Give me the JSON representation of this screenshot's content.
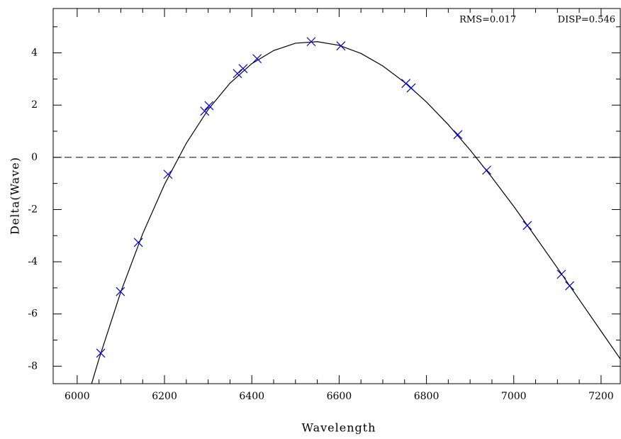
{
  "chart_data": {
    "type": "scatter",
    "xlabel": "Wavelength",
    "ylabel": "Delta(Wave)",
    "annotations": [
      "RMS=0.017",
      "DISP=0.546"
    ],
    "xlim": [
      5945,
      7244
    ],
    "ylim": [
      -8.67,
      5.7
    ],
    "xticks": [
      6000,
      6200,
      6400,
      6600,
      6800,
      7000,
      7200
    ],
    "xminorticks": [
      6050,
      6100,
      6150,
      6250,
      6300,
      6350,
      6450,
      6500,
      6550,
      6650,
      6700,
      6750,
      6850,
      6900,
      6950,
      7050,
      7100,
      7150
    ],
    "yticks": [
      -8,
      -6,
      -4,
      -2,
      0,
      2,
      4
    ],
    "yminorticks": [
      -7,
      -5,
      -3,
      -1,
      1,
      3,
      5
    ],
    "hline": 0,
    "color": "#0000cc",
    "x": [
      6054,
      6099,
      6140,
      6208,
      6292,
      6302,
      6367,
      6380,
      6412,
      6536,
      6604,
      6753,
      6765,
      6872,
      6938,
      7031,
      7109,
      7128
    ],
    "values": [
      -7.5,
      -5.14,
      -3.26,
      -0.65,
      1.77,
      1.98,
      3.21,
      3.4,
      3.78,
      4.43,
      4.27,
      2.83,
      2.66,
      0.87,
      -0.49,
      -2.61,
      -4.48,
      -4.92
    ],
    "fit": {
      "type": "line",
      "color": "#000000",
      "x": [
        6030,
        6050,
        6100,
        6150,
        6200,
        6250,
        6300,
        6350,
        6400,
        6450,
        6500,
        6550,
        6600,
        6650,
        6700,
        6750,
        6800,
        6850,
        6900,
        6950,
        7000,
        7050,
        7100,
        7150,
        7200,
        7244
      ],
      "values": [
        -8.84,
        -7.72,
        -5.15,
        -2.93,
        -1.04,
        0.54,
        1.83,
        2.84,
        3.59,
        4.09,
        4.37,
        4.43,
        4.29,
        3.98,
        3.5,
        2.87,
        2.12,
        1.25,
        0.28,
        -0.77,
        -1.88,
        -3.05,
        -4.24,
        -5.45,
        -6.66,
        -7.72
      ]
    }
  }
}
